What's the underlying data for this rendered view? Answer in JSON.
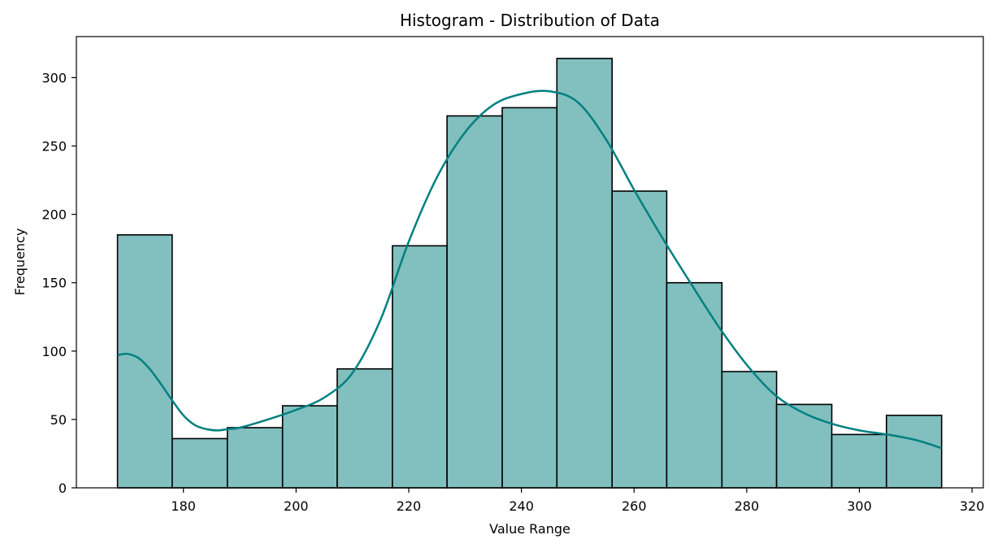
{
  "chart_data": {
    "type": "bar",
    "subtype": "histogram",
    "title": "Histogram - Distribution of Data",
    "xlabel": "Value Range",
    "ylabel": "Frequency",
    "xlim": [
      161,
      322
    ],
    "ylim": [
      0,
      330
    ],
    "xticks": [
      180,
      200,
      220,
      240,
      260,
      280,
      300,
      320
    ],
    "yticks": [
      0,
      50,
      100,
      150,
      200,
      250,
      300
    ],
    "bins": [
      {
        "start": 168.3,
        "end": 178.0,
        "count": 185
      },
      {
        "start": 178.0,
        "end": 187.8,
        "count": 36
      },
      {
        "start": 187.8,
        "end": 197.6,
        "count": 44
      },
      {
        "start": 197.6,
        "end": 207.3,
        "count": 60
      },
      {
        "start": 207.3,
        "end": 217.1,
        "count": 87
      },
      {
        "start": 217.1,
        "end": 226.8,
        "count": 177
      },
      {
        "start": 226.8,
        "end": 236.6,
        "count": 272
      },
      {
        "start": 236.6,
        "end": 246.3,
        "count": 278
      },
      {
        "start": 246.3,
        "end": 256.1,
        "count": 314
      },
      {
        "start": 256.1,
        "end": 265.8,
        "count": 217
      },
      {
        "start": 265.8,
        "end": 275.6,
        "count": 150
      },
      {
        "start": 275.6,
        "end": 285.3,
        "count": 85
      },
      {
        "start": 285.3,
        "end": 295.1,
        "count": 61
      },
      {
        "start": 295.1,
        "end": 304.8,
        "count": 39
      },
      {
        "start": 304.8,
        "end": 314.6,
        "count": 53
      }
    ],
    "kde": {
      "x": [
        168.3,
        170,
        172,
        174,
        176,
        178,
        180,
        182,
        184,
        186,
        188,
        190,
        195,
        200,
        205,
        210,
        215,
        220,
        225,
        230,
        235,
        240,
        245,
        250,
        255,
        260,
        265,
        270,
        275,
        280,
        285,
        290,
        295,
        300,
        305,
        310,
        314.6
      ],
      "y": [
        97,
        98,
        95,
        87,
        76,
        64,
        53,
        46,
        43,
        42,
        43,
        44,
        50,
        57,
        66,
        84,
        123,
        180,
        227,
        260,
        280,
        288,
        290,
        282,
        255,
        218,
        183,
        150,
        118,
        90,
        68,
        55,
        47,
        42,
        39,
        35,
        29
      ]
    },
    "colors": {
      "bar_fill": "#82bfbf",
      "bar_edge": "#000000",
      "kde_line": "#008080"
    },
    "grid": false,
    "legend": "none"
  }
}
